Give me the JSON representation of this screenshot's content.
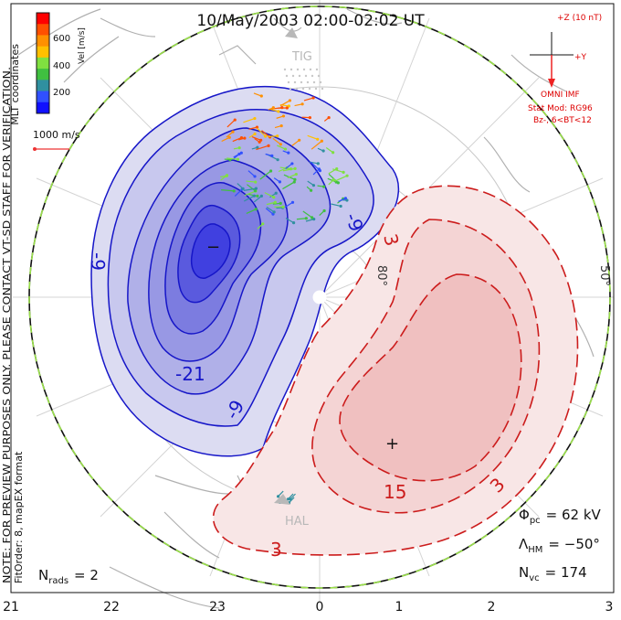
{
  "title": "10/May/2003 02:00-02:02 UT",
  "side_note": "NOTE: FOR PREVIEW PURPOSES ONLY. PLEASE CONTACT VT-SD STAFF FOR VERIFICATION.",
  "fit_order": "FitOrder: 8, mapEX format",
  "mlt_label": "MLT coordinates",
  "colorbar": {
    "label": "Vel [m/s]",
    "ticks": [
      "600",
      "400",
      "200"
    ],
    "colors": [
      "#ff0000",
      "#ff5000",
      "#ff9000",
      "#ffc000",
      "#80e040",
      "#40c040",
      "#3090a0",
      "#3050ff",
      "#1010ff"
    ]
  },
  "scale_vector": "1000 m/s",
  "imf": {
    "z_label": "+Z (10 nT)",
    "y_label": "+Y",
    "source": "OMNI IMF",
    "model": "Stat Mod: RG96",
    "condition": "Bz-, 6<BT<12"
  },
  "radars": {
    "top": "TIG",
    "bottom": "HAL"
  },
  "lat_labels": {
    "pole": "80°",
    "ring": "50°"
  },
  "contours": {
    "negative_labels": [
      "-9",
      "-9",
      "-21",
      "-9"
    ],
    "positive_labels": [
      "3",
      "15",
      "3",
      "3"
    ],
    "min_marker": "−",
    "max_marker": "+"
  },
  "stats": {
    "phi_label": "Φ",
    "phi_sub": "pc",
    "phi_value": "= 62 kV",
    "lambda_label": "Λ",
    "lambda_sub": "HM",
    "lambda_value": "= −50°",
    "nvc_label": "N",
    "nvc_sub": "vc",
    "nvc_value": "= 174",
    "nrads_label": "N",
    "nrads_sub": "rads",
    "nrads_value": "= 2"
  },
  "mlt_ticks": [
    "21",
    "22",
    "23",
    "0",
    "1",
    "2",
    "3"
  ]
}
